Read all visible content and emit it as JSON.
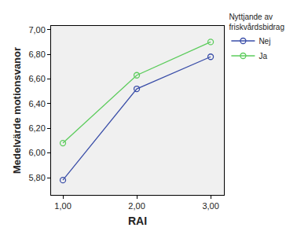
{
  "chart_data": {
    "type": "line",
    "x_label": "RAI",
    "y_label": "Medelvärde motionsvanor",
    "legend_title": "Nyttjande av friskvårdsbidrag",
    "x": [
      1,
      2,
      3
    ],
    "xlim": [
      0.84,
      3.18
    ],
    "xticks": [
      {
        "value": 1,
        "label": "1,00"
      },
      {
        "value": 2,
        "label": "2,00"
      },
      {
        "value": 3,
        "label": "3,00"
      }
    ],
    "ylim": [
      5.66,
      7.03
    ],
    "yticks": [
      {
        "value": 5.8,
        "label": "5,80"
      },
      {
        "value": 6.0,
        "label": "6,00"
      },
      {
        "value": 6.2,
        "label": "6,20"
      },
      {
        "value": 6.4,
        "label": "6,40"
      },
      {
        "value": 6.6,
        "label": "6,60"
      },
      {
        "value": 6.8,
        "label": "6,80"
      },
      {
        "value": 7.0,
        "label": "7,00"
      }
    ],
    "series": [
      {
        "name": "Nej",
        "color": "#3a4ea8",
        "values": [
          5.78,
          6.52,
          6.78
        ]
      },
      {
        "name": "Ja",
        "color": "#5ccc5c",
        "values": [
          6.08,
          6.63,
          6.9
        ]
      }
    ],
    "marker": "circle-open",
    "grid": false,
    "legend": "right"
  }
}
